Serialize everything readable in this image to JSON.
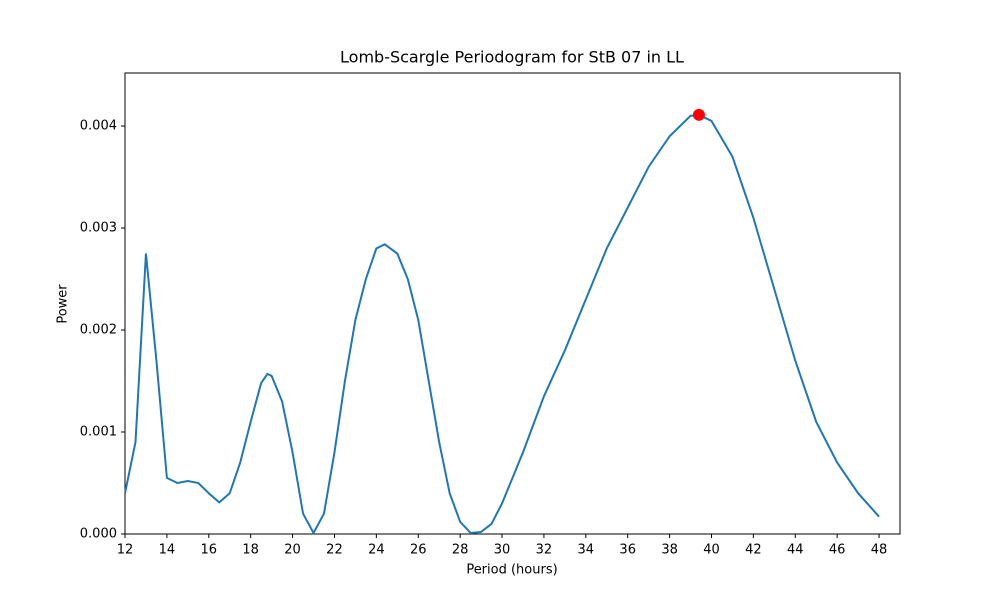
{
  "chart_data": {
    "type": "line",
    "title": "Lomb-Scargle Periodogram for StB 07 in LL",
    "x_label": "Period (hours)",
    "y_label": "Power",
    "color": "#1f77b4",
    "x": [
      12,
      12.5,
      13,
      13.5,
      14,
      14.5,
      15,
      15.5,
      16,
      16.5,
      17,
      17.5,
      18,
      18.5,
      18.8,
      19,
      19.5,
      20,
      20.5,
      21,
      21.5,
      22,
      22.5,
      23,
      23.5,
      24,
      24.4,
      25,
      25.5,
      26,
      26.5,
      27,
      27.5,
      28,
      28.5,
      29,
      29.5,
      30,
      31,
      32,
      33,
      34,
      35,
      36,
      37,
      38,
      39,
      39.4,
      40,
      41,
      42,
      43,
      44,
      45,
      46,
      47,
      48
    ],
    "values": [
      0.0004,
      0.0009,
      0.00275,
      0.0017,
      0.00055,
      0.0005,
      0.00052,
      0.0005,
      0.0004,
      0.00031,
      0.0004,
      0.0007,
      0.0011,
      0.00148,
      0.00157,
      0.00155,
      0.0013,
      0.0008,
      0.0002,
      1e-05,
      0.0002,
      0.0008,
      0.0015,
      0.0021,
      0.0025,
      0.0028,
      0.00284,
      0.00275,
      0.0025,
      0.0021,
      0.0015,
      0.0009,
      0.0004,
      0.00012,
      1e-05,
      2e-05,
      0.0001,
      0.0003,
      0.0008,
      0.00135,
      0.0018,
      0.0023,
      0.0028,
      0.0032,
      0.0036,
      0.0039,
      0.0041,
      0.00411,
      0.00405,
      0.0037,
      0.0031,
      0.0024,
      0.0017,
      0.0011,
      0.0007,
      0.0004,
      0.00017
    ],
    "peak": {
      "x": 39.4,
      "value": 0.00411,
      "color": "#ff0000"
    },
    "xlim": [
      12,
      49
    ],
    "ylim": [
      0,
      0.00452
    ],
    "xticks": [
      12,
      14,
      16,
      18,
      20,
      22,
      24,
      26,
      28,
      30,
      32,
      34,
      36,
      38,
      40,
      42,
      44,
      46,
      48
    ],
    "yticks": [
      {
        "value": 0,
        "label": "0.000"
      },
      {
        "value": 0.001,
        "label": "0.001"
      },
      {
        "value": 0.002,
        "label": "0.002"
      },
      {
        "value": 0.003,
        "label": "0.003"
      },
      {
        "value": 0.004,
        "label": "0.004"
      }
    ]
  }
}
